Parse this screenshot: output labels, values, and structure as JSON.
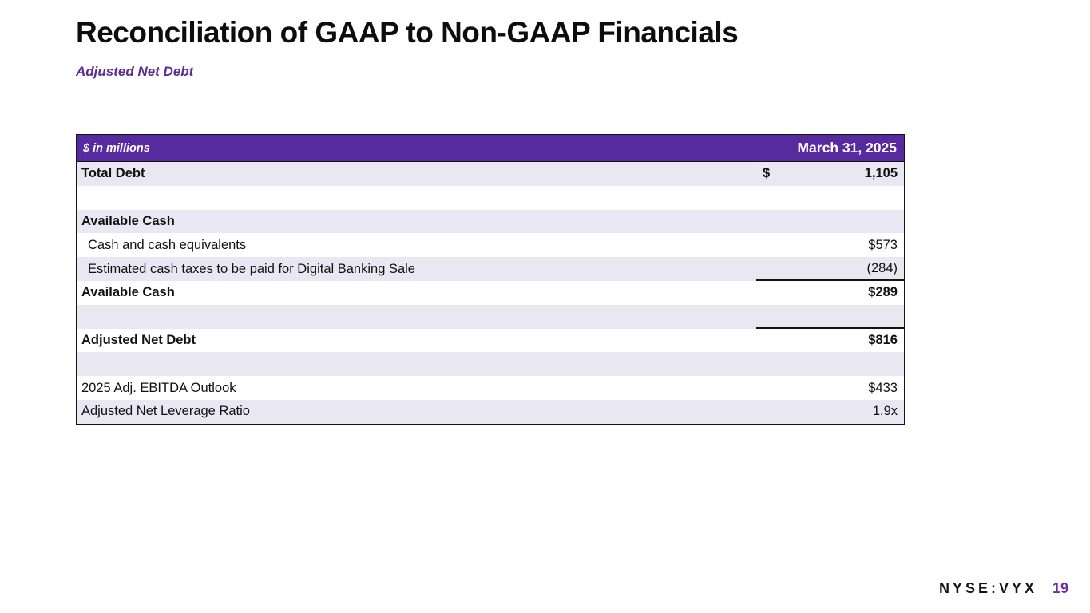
{
  "page": {
    "title": "Reconciliation of GAAP to Non-GAAP Financials",
    "subtitle": "Adjusted Net Debt"
  },
  "table": {
    "header": {
      "left": "$ in millions",
      "right": "March 31, 2025"
    },
    "rows": [
      {
        "label": "Total Debt",
        "currency": "$",
        "value": "1,105"
      },
      {
        "label": "",
        "value": ""
      },
      {
        "label": "Available Cash",
        "value": ""
      },
      {
        "label": "Cash and cash equivalents",
        "value": "$573"
      },
      {
        "label": "Estimated cash taxes to be paid for Digital Banking Sale",
        "value": "(284)"
      },
      {
        "label": "Available Cash",
        "value": "$289"
      },
      {
        "label": "",
        "value": ""
      },
      {
        "label": "Adjusted Net Debt",
        "value": "$816"
      },
      {
        "label": "",
        "value": ""
      },
      {
        "label": "2025 Adj. EBITDA Outlook",
        "value": "$433"
      },
      {
        "label": "Adjusted Net Leverage Ratio",
        "value": "1.9x"
      }
    ]
  },
  "footer": {
    "ticker": "NYSE:VYX",
    "page_number": "19"
  },
  "colors": {
    "header_purple": "#582aa0",
    "stripe_lavender": "#e8e7f2",
    "accent_purple": "#5f2c91",
    "page_number_purple": "#6e2f9e"
  }
}
